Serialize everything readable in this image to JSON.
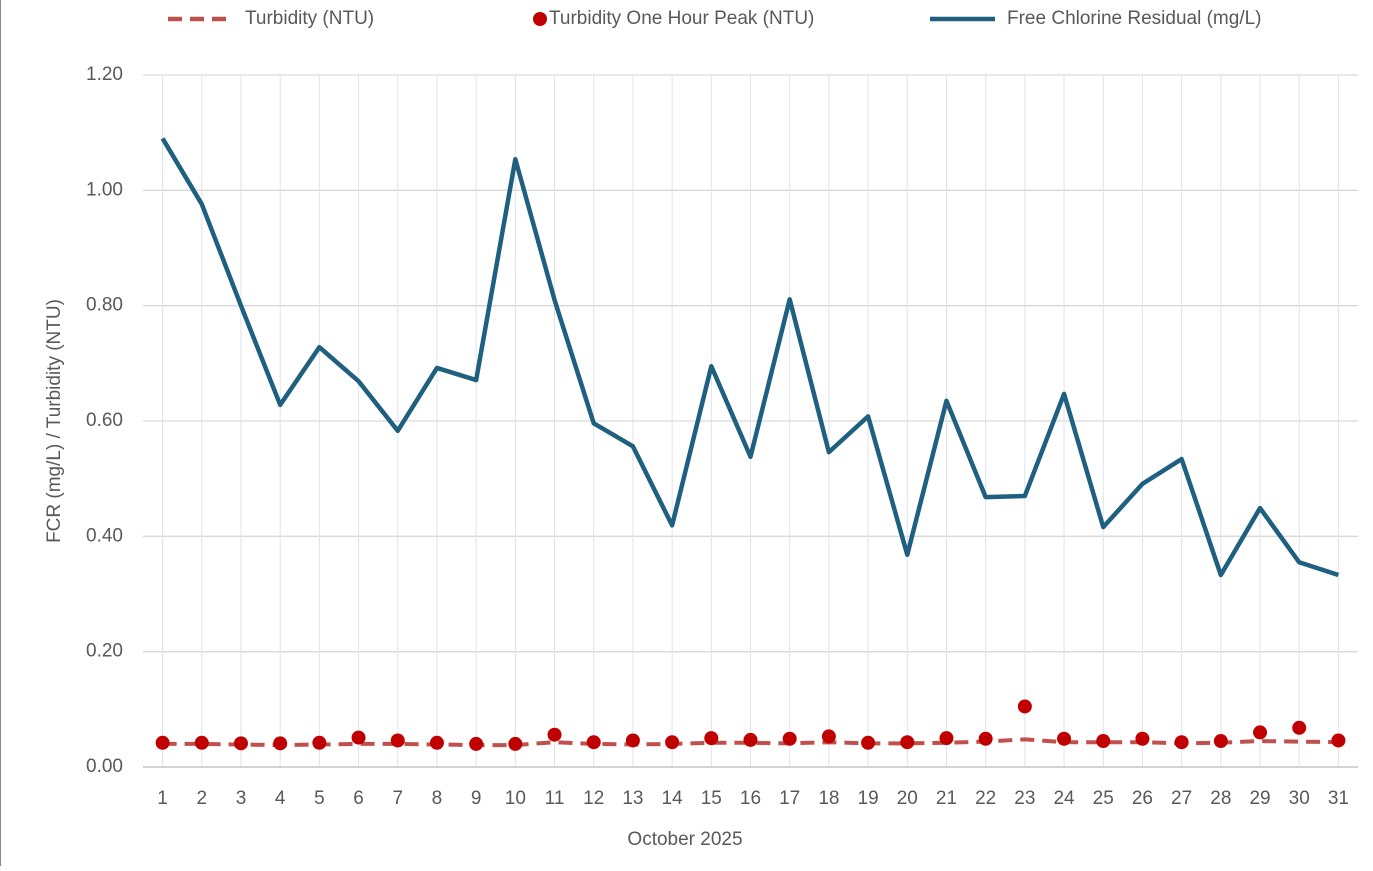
{
  "chart_data": {
    "type": "line",
    "x_label": "October 2025",
    "y_label": "FCR (mg/L) / Turbidity (NTU)",
    "categories": [
      "1",
      "2",
      "3",
      "4",
      "5",
      "6",
      "7",
      "8",
      "9",
      "10",
      "11",
      "12",
      "13",
      "14",
      "15",
      "16",
      "17",
      "18",
      "19",
      "20",
      "21",
      "22",
      "23",
      "24",
      "25",
      "26",
      "27",
      "28",
      "29",
      "30",
      "31"
    ],
    "series": [
      {
        "name": "Turbidity (NTU)",
        "color": "#c0504d",
        "style": "dashed",
        "values": [
          0.04,
          0.04,
          0.039,
          0.038,
          0.039,
          0.04,
          0.04,
          0.039,
          0.038,
          0.038,
          0.043,
          0.04,
          0.039,
          0.04,
          0.042,
          0.042,
          0.041,
          0.043,
          0.041,
          0.041,
          0.042,
          0.044,
          0.048,
          0.043,
          0.043,
          0.043,
          0.041,
          0.042,
          0.045,
          0.044,
          0.043
        ]
      },
      {
        "name": "Turbidity One Hour Peak (NTU)",
        "color": "#c00000",
        "style": "markers",
        "values": [
          0.042,
          0.042,
          0.041,
          0.041,
          0.042,
          0.051,
          0.046,
          0.042,
          0.04,
          0.04,
          0.056,
          0.043,
          0.046,
          0.043,
          0.05,
          0.047,
          0.049,
          0.053,
          0.042,
          0.043,
          0.05,
          0.049,
          0.105,
          0.049,
          0.045,
          0.049,
          0.043,
          0.045,
          0.06,
          0.068,
          0.046
        ]
      },
      {
        "name": "Free Chlorine Residual (mg/L)",
        "color": "#1f5f7f",
        "style": "solid",
        "values": [
          1.09,
          0.976,
          0.8,
          0.628,
          0.728,
          0.669,
          0.583,
          0.692,
          0.671,
          1.054,
          0.81,
          0.596,
          0.556,
          0.419,
          0.695,
          0.538,
          0.811,
          0.546,
          0.608,
          0.368,
          0.635,
          0.468,
          0.47,
          0.647,
          0.416,
          0.491,
          0.534,
          0.333,
          0.449,
          0.355,
          0.333
        ]
      }
    ],
    "ylim": [
      0,
      1.2
    ],
    "yticks": [
      {
        "value": 0,
        "label": "0.00"
      },
      {
        "value": 0.2,
        "label": "0.20"
      },
      {
        "value": 0.4,
        "label": "0.40"
      },
      {
        "value": 0.6,
        "label": "0.60"
      },
      {
        "value": 0.8,
        "label": "0.80"
      },
      {
        "value": 1,
        "label": "1.00"
      },
      {
        "value": 1.2,
        "label": "1.20"
      }
    ],
    "grid": true,
    "legend": "top"
  }
}
